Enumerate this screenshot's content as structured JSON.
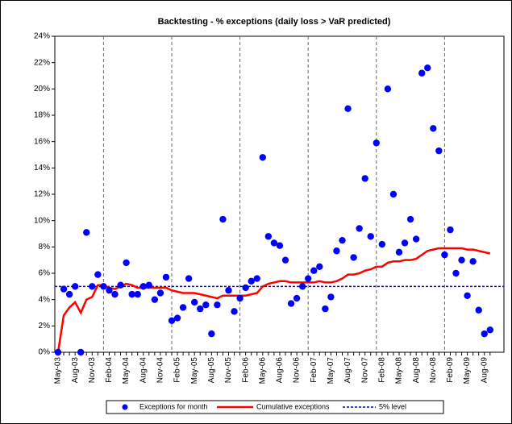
{
  "chart_data": {
    "type": "combo",
    "title": "Backtesting - % exceptions (daily loss > VaR predicted)",
    "categories": [
      "May-03",
      null,
      null,
      "Aug-03",
      null,
      null,
      "Nov-03",
      null,
      null,
      "Feb-04",
      null,
      null,
      "May-04",
      null,
      null,
      "Aug-04",
      null,
      null,
      "Nov-04",
      null,
      null,
      "Feb-05",
      null,
      null,
      "May-05",
      null,
      null,
      "Aug-05",
      null,
      null,
      "Nov-05",
      null,
      null,
      "Feb-06",
      null,
      null,
      "May-06",
      null,
      null,
      "Aug-06",
      null,
      null,
      "Nov-06",
      null,
      null,
      "Feb-07",
      null,
      null,
      "May-07",
      null,
      null,
      "Aug-07",
      null,
      null,
      "Nov-07",
      null,
      null,
      "Feb-08",
      null,
      null,
      "May-08",
      null,
      null,
      "Aug-08",
      null,
      null,
      "Nov-08",
      null,
      null,
      "Feb-09",
      null,
      null,
      "May-09",
      null,
      null,
      "Aug-09",
      null
    ],
    "series": [
      {
        "name": "Exceptions for month",
        "color": "#0000ff",
        "style": "marker",
        "values": [
          0,
          4.8,
          4.4,
          5.0,
          0,
          9.1,
          5.0,
          5.9,
          5.0,
          4.7,
          4.4,
          5.1,
          6.8,
          4.4,
          4.4,
          5.0,
          5.1,
          4.0,
          4.5,
          5.7,
          2.4,
          2.6,
          3.4,
          5.6,
          3.8,
          3.3,
          3.6,
          1.4,
          3.6,
          10.1,
          4.7,
          3.1,
          4.1,
          4.9,
          5.4,
          5.6,
          14.8,
          8.8,
          8.3,
          8.1,
          7.0,
          3.7,
          4.1,
          5.0,
          5.6,
          6.2,
          6.5,
          3.3,
          4.2,
          7.7,
          8.5,
          18.5,
          7.2,
          9.4,
          13.2,
          8.8,
          15.9,
          8.2,
          20.0,
          12.0,
          7.6,
          8.3,
          10.1,
          8.6,
          21.2,
          21.6,
          17.0,
          15.3,
          7.4,
          9.3,
          6.0,
          7.0,
          4.3,
          6.9,
          3.2,
          1.4,
          1.7
        ]
      },
      {
        "name": "Cumulative exceptions",
        "color": "#ff0000",
        "style": "line",
        "values": [
          0,
          2.8,
          3.4,
          3.8,
          3.0,
          4.0,
          4.2,
          5.1,
          5.1,
          4.9,
          4.8,
          5.0,
          5.2,
          5.1,
          4.9,
          4.9,
          4.9,
          4.9,
          4.9,
          4.9,
          4.7,
          4.6,
          4.5,
          4.5,
          4.5,
          4.4,
          4.3,
          4.2,
          4.1,
          4.3,
          4.3,
          4.3,
          4.3,
          4.3,
          4.4,
          4.5,
          5.0,
          5.2,
          5.3,
          5.4,
          5.4,
          5.3,
          5.3,
          5.3,
          5.3,
          5.3,
          5.4,
          5.3,
          5.3,
          5.4,
          5.6,
          5.9,
          5.9,
          6.0,
          6.2,
          6.3,
          6.5,
          6.5,
          6.8,
          6.9,
          6.9,
          7.0,
          7.0,
          7.1,
          7.4,
          7.7,
          7.8,
          7.9,
          7.9,
          7.9,
          7.9,
          7.9,
          7.8,
          7.8,
          7.7,
          7.6,
          7.5
        ]
      },
      {
        "name": "5% level",
        "color": "#0000cc",
        "style": "dashed",
        "value": 5
      }
    ],
    "ylim": [
      0,
      24
    ],
    "yticks": [
      {
        "value": 0,
        "label": "0%"
      },
      {
        "value": 2,
        "label": "2%"
      },
      {
        "value": 4,
        "label": "4%"
      },
      {
        "value": 6,
        "label": "6%"
      },
      {
        "value": 8,
        "label": "8%"
      },
      {
        "value": 10,
        "label": "10%"
      },
      {
        "value": 12,
        "label": "12%"
      },
      {
        "value": 14,
        "label": "14%"
      },
      {
        "value": 16,
        "label": "16%"
      },
      {
        "value": 18,
        "label": "18%"
      },
      {
        "value": 20,
        "label": "20%"
      },
      {
        "value": 22,
        "label": "22%"
      },
      {
        "value": 24,
        "label": "24%"
      }
    ],
    "legend": "bottom"
  }
}
